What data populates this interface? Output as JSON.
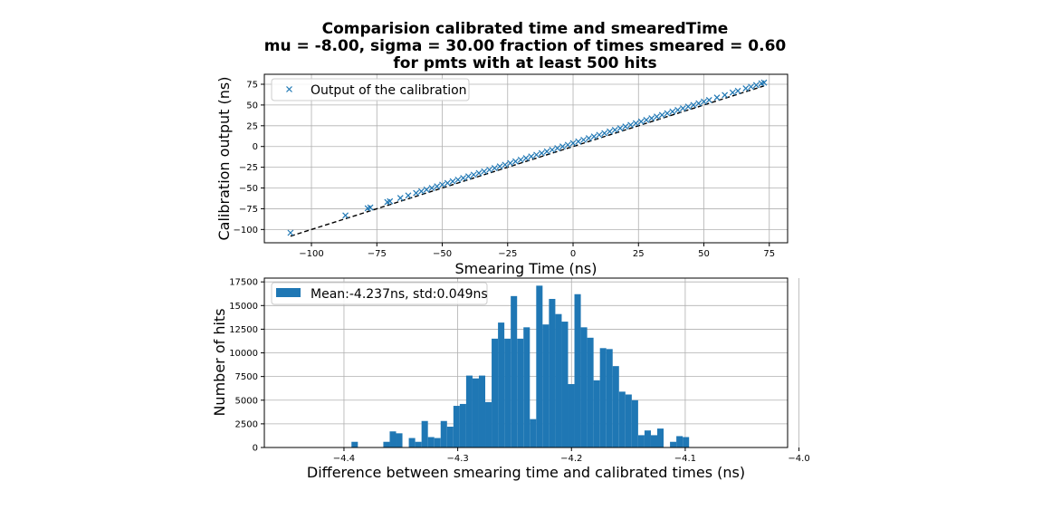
{
  "figure": {
    "title_lines": [
      "Comparision calibrated time and smearedTime",
      "mu = -8.00, sigma = 30.00 fraction of times smeared = 0.60",
      "for pmts with at least 500 hits"
    ]
  },
  "chart_data": [
    {
      "type": "scatter",
      "xlabel": "Smearing Time (ns)",
      "ylabel": "Calibration output (ns)",
      "xlim": [
        -118,
        82
      ],
      "ylim": [
        -116,
        87
      ],
      "xticks": [
        -100,
        -75,
        -50,
        -25,
        0,
        25,
        50,
        75
      ],
      "xtick_labels": [
        "−100",
        "−75",
        "−50",
        "−25",
        "0",
        "25",
        "50",
        "75"
      ],
      "yticks": [
        -100,
        -75,
        -50,
        -25,
        0,
        25,
        50,
        75
      ],
      "ytick_labels": [
        "−100",
        "−75",
        "−50",
        "−25",
        "0",
        "25",
        "50",
        "75"
      ],
      "grid": true,
      "legend": {
        "position": "top-left",
        "entries": [
          "Output of the calibration"
        ]
      },
      "marker": "x",
      "color": "#1f77b4",
      "reference_line": {
        "style": "dashed",
        "color": "#000000",
        "x": [
          -108,
          73
        ],
        "y": [
          -108,
          73
        ]
      },
      "series": [
        {
          "name": "Output of the calibration",
          "x": [
            -108,
            -87,
            -78.5,
            -77.5,
            -71,
            -70,
            -66,
            -63,
            -60,
            -58,
            -56,
            -54,
            -52,
            -50,
            -48,
            -46,
            -44,
            -42,
            -40,
            -38,
            -36,
            -34,
            -32,
            -30,
            -28,
            -26,
            -24,
            -22,
            -20,
            -18,
            -16,
            -14,
            -12,
            -10,
            -8,
            -6,
            -4,
            -2,
            0,
            2,
            4,
            6,
            8,
            10,
            12,
            14,
            16,
            18,
            20,
            22,
            24,
            26,
            28,
            30,
            32,
            34,
            36,
            38,
            40,
            42,
            44,
            46,
            48,
            50,
            52,
            55,
            58,
            61,
            63,
            66,
            68,
            70,
            72,
            73
          ],
          "y": [
            -104,
            -83,
            -74.5,
            -73.5,
            -67,
            -66,
            -62,
            -59,
            -56,
            -54,
            -52,
            -50,
            -48,
            -46,
            -44,
            -42,
            -40,
            -38,
            -36,
            -34,
            -32,
            -30,
            -28,
            -26,
            -24,
            -22,
            -20,
            -18,
            -16,
            -14,
            -12,
            -10,
            -8,
            -6,
            -4,
            -2,
            0,
            2,
            4,
            6,
            8,
            10,
            12,
            14,
            16,
            18,
            20,
            22,
            24,
            26,
            28,
            30,
            32,
            34,
            36,
            38,
            40,
            42,
            44,
            46,
            48,
            50,
            52,
            54,
            56,
            59,
            62,
            65,
            67,
            70,
            72,
            74,
            76,
            77
          ]
        }
      ]
    },
    {
      "type": "bar",
      "subtype": "histogram",
      "xlabel": "Difference between smearing time and calibrated times (ns)",
      "ylabel": "Number of hits",
      "xlim": [
        -4.47,
        -4.01
      ],
      "ylim": [
        0,
        17900
      ],
      "xticks": [
        -4.4,
        -4.3,
        -4.2,
        -4.1,
        -4.0
      ],
      "xtick_labels": [
        "−4.4",
        "−4.3",
        "−4.2",
        "−4.1",
        "−4.0"
      ],
      "yticks": [
        0,
        2500,
        5000,
        7500,
        10000,
        12500,
        15000,
        17500
      ],
      "ytick_labels": [
        "0",
        "2500",
        "5000",
        "7500",
        "10000",
        "12500",
        "15000",
        "17500"
      ],
      "grid": true,
      "legend": {
        "position": "top-left",
        "entries": [
          "Mean:-4.237ns, std:0.049ns"
        ]
      },
      "color": "#1f77b4",
      "bin_start": -4.3934,
      "bin_width": 0.0056,
      "series": [
        {
          "name": "Mean:-4.237ns, std:0.049ns",
          "values": [
            600,
            0,
            0,
            0,
            0,
            600,
            1700,
            1500,
            0,
            1000,
            600,
            2800,
            1100,
            1000,
            2800,
            2200,
            4400,
            4600,
            7600,
            7300,
            7600,
            4800,
            11500,
            13200,
            11500,
            16000,
            11500,
            12700,
            3000,
            17100,
            13000,
            15700,
            14100,
            13300,
            6700,
            16200,
            12700,
            11600,
            7100,
            10500,
            10400,
            8600,
            5900,
            5600,
            5000,
            1300,
            1800,
            1300,
            2000,
            0,
            600,
            1200,
            1100
          ]
        }
      ]
    }
  ]
}
